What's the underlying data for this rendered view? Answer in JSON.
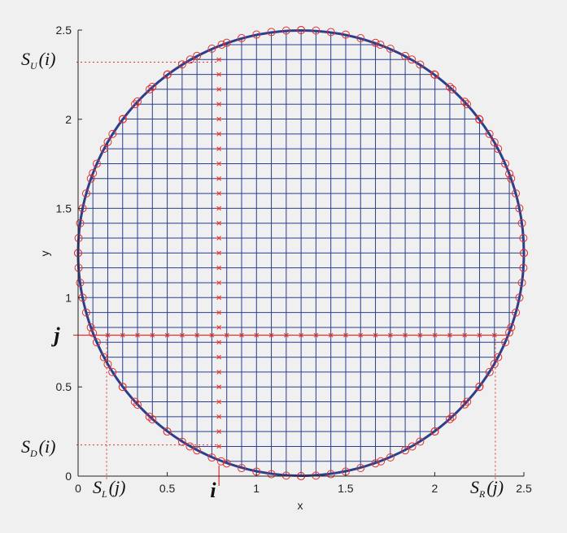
{
  "axes": {
    "xlabel": "x",
    "ylabel": "y",
    "xlim": [
      0,
      2.5
    ],
    "ylim": [
      0,
      2.5
    ],
    "x_ticks": [
      0,
      0.5,
      1,
      1.5,
      2,
      2.5
    ],
    "x_tick_labels": [
      "0",
      "0.5",
      "1",
      "1.5",
      "2",
      "2.5"
    ],
    "y_ticks": [
      0,
      0.5,
      1,
      1.5,
      2,
      2.5
    ],
    "y_tick_labels": [
      "0",
      "0.5",
      "1",
      "1.5",
      "2",
      "2.5"
    ]
  },
  "circle": {
    "center": [
      1.25,
      1.25
    ],
    "radius": 1.25,
    "color": "#2b3f8c"
  },
  "grid": {
    "start": 0.083,
    "step": 0.0834,
    "count": 29,
    "color": "#2b3f8c"
  },
  "highlight": {
    "i_x": 0.79,
    "j_y": 0.79,
    "color": "#e03030"
  },
  "boundary_marker_color": "#e03030",
  "guide_color": "#e03030",
  "annotations": {
    "SU": {
      "main": "S",
      "sub": "U",
      "arg": "(i)",
      "at": [
        0.79,
        2.32
      ]
    },
    "SD": {
      "main": "S",
      "sub": "D",
      "arg": "(i)",
      "at": [
        0.79,
        0.175
      ]
    },
    "SL": {
      "main": "S",
      "sub": "L",
      "arg": "(j)",
      "at": [
        0.16,
        0.79
      ]
    },
    "SR": {
      "main": "S",
      "sub": "R",
      "arg": "(j)",
      "at": [
        2.34,
        0.79
      ]
    },
    "i_label": "i",
    "j_label": "j"
  }
}
